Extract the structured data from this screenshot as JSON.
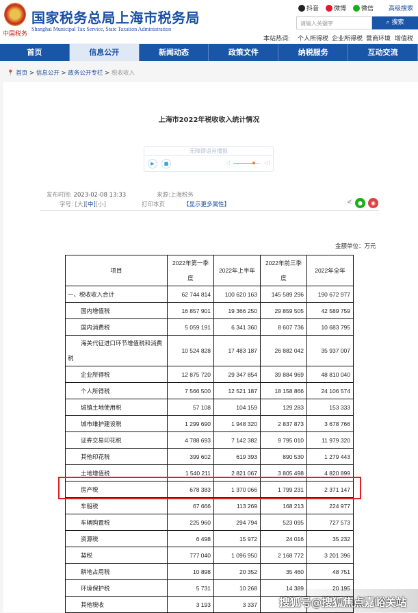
{
  "header": {
    "title": "国家税务总局上海市税务局",
    "subtitle": "Shanghai Municipal Tax Service, State Taxation Administration",
    "seal_text": "中国税务",
    "social": [
      {
        "label": "抖音",
        "icon": "douyin-icon",
        "color": "#222222"
      },
      {
        "label": "微博",
        "icon": "weibo-icon",
        "color": "#e6162d"
      },
      {
        "label": "微信",
        "icon": "wechat-icon",
        "color": "#1aad19"
      }
    ],
    "advanced_search": "高级搜索",
    "search_placeholder": "请输入关键字",
    "search_button": "搜索",
    "hot_label": "本站热词:",
    "hot_words": [
      "个人所得税",
      "企业所得税",
      "营商环境",
      "增值税"
    ]
  },
  "nav": {
    "items": [
      "首页",
      "信息公开",
      "新闻动态",
      "政策文件",
      "纳税服务",
      "互动交流"
    ],
    "active": 1
  },
  "breadcrumb": [
    "首页",
    "信息公开",
    "政务公开专栏",
    "税收收入"
  ],
  "article": {
    "title": "上海市2022年税收收入统计情况",
    "audio_label": "无障碍语音播报",
    "volume_percent": 75,
    "publish_label": "发布时间:",
    "publish_time": "2023-02-08 13:33",
    "source_label": "来源:",
    "source": "上海税务",
    "font_label": "字号:",
    "font_large": "[大]",
    "font_medium": "[中]",
    "font_small": "[小]",
    "print": "打印本页",
    "more": "【显示更多属性】",
    "unit": "金额单位：万元"
  },
  "table": {
    "headers": [
      "项目",
      "2022年第一季度",
      "2022年上半年",
      "2022年前三季度",
      "2022年全年"
    ],
    "rows": [
      [
        "一、税收收入合计",
        "62 744 814",
        "100 620 163",
        "145 589 296",
        "190 672 977"
      ],
      [
        "国内增值税",
        "16 857 901",
        "19 366 250",
        "29 859 505",
        "42 589 759"
      ],
      [
        "国内消费税",
        "5 059 191",
        "6 341 360",
        "8 607 736",
        "10 683 795"
      ],
      [
        "海关代征进口环节增值税和消费税",
        "10 524 828",
        "17 483 187",
        "26 882 042",
        "35 937 007"
      ],
      [
        "企业所得税",
        "12 875 720",
        "29 347 854",
        "39 884 969",
        "48 810 040"
      ],
      [
        "个人所得税",
        "7 566 500",
        "12 521 187",
        "18 158 866",
        "24 106 574"
      ],
      [
        "城镇土地使用税",
        "57 108",
        "104 159",
        "129 283",
        "153 333"
      ],
      [
        "城市维护建设税",
        "1 299 690",
        "1 948 320",
        "2 837 873",
        "3 678 766"
      ],
      [
        "证券交易印花税",
        "4 788 693",
        "7 142 382",
        "9 795 010",
        "11 979 320"
      ],
      [
        "其他印花税",
        "399 602",
        "619 393",
        "890 530",
        "1 279 443"
      ],
      [
        "土地增值税",
        "1 540 211",
        "2 821 067",
        "3 805 498",
        "4 820 899"
      ],
      [
        "房产税",
        "678 383",
        "1 370 066",
        "1 799 231",
        "2 371 147"
      ],
      [
        "车船税",
        "67 666",
        "113 269",
        "168 213",
        "224 977"
      ],
      [
        "车辆购置税",
        "225 960",
        "294 794",
        "523 095",
        "727 573"
      ],
      [
        "资源税",
        "6 498",
        "15 972",
        "24 016",
        "35 232"
      ],
      [
        "契税",
        "777 040",
        "1 096 950",
        "2 168 772",
        "3 201 396"
      ],
      [
        "耕地占用税",
        "10 898",
        "20 352",
        "35 460",
        "48 751"
      ],
      [
        "环境保护税",
        "5 731",
        "10 268",
        "14 389",
        "20 195"
      ],
      [
        "其他税收",
        "3 193",
        "3 337",
        "",
        ""
      ]
    ],
    "highlight_row": "房产税",
    "highlight_color": "#e02020"
  },
  "watermark": "搜狐号@搜狐焦点嘉峪关站"
}
